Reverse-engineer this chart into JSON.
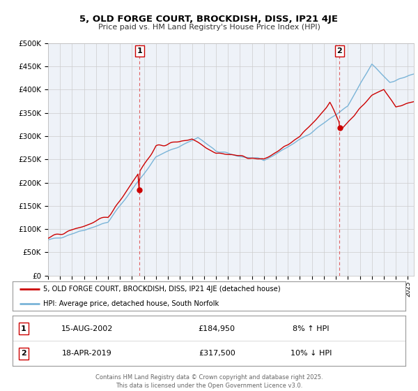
{
  "title": "5, OLD FORGE COURT, BROCKDISH, DISS, IP21 4JE",
  "subtitle": "Price paid vs. HM Land Registry's House Price Index (HPI)",
  "red_label": "5, OLD FORGE COURT, BROCKDISH, DISS, IP21 4JE (detached house)",
  "blue_label": "HPI: Average price, detached house, South Norfolk",
  "annotation1": {
    "num": "1",
    "date": "15-AUG-2002",
    "price": "£184,950",
    "hpi": "8% ↑ HPI",
    "year": 2002.625
  },
  "annotation2": {
    "num": "2",
    "date": "18-APR-2019",
    "price": "£317,500",
    "hpi": "10% ↓ HPI",
    "year": 2019.3
  },
  "sale1_value": 184950,
  "sale2_value": 317500,
  "red_color": "#cc0000",
  "blue_color": "#7ab4d8",
  "dashed_color": "#e06060",
  "plot_background": "#eef2f8",
  "grid_color": "#cccccc",
  "ylim": [
    0,
    500000
  ],
  "yticks": [
    0,
    50000,
    100000,
    150000,
    200000,
    250000,
    300000,
    350000,
    400000,
    450000,
    500000
  ],
  "footer": "Contains HM Land Registry data © Crown copyright and database right 2025.\nThis data is licensed under the Open Government Licence v3.0."
}
